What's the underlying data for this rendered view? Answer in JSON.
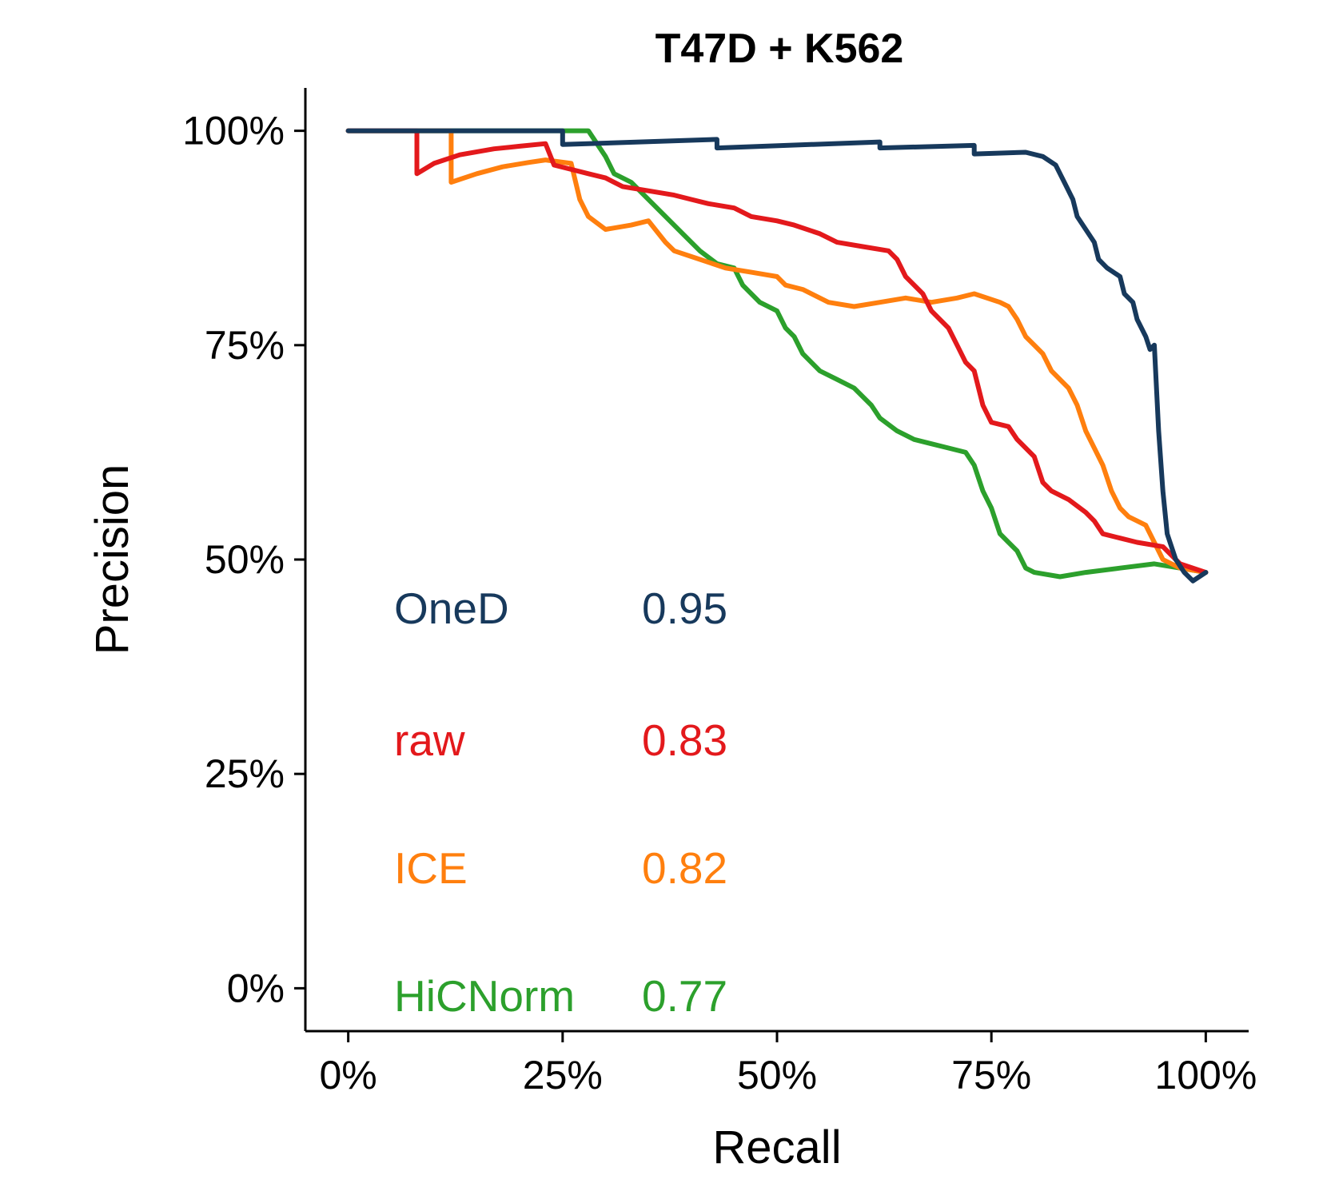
{
  "chart_data": {
    "type": "line",
    "title": "T47D + K562",
    "xlabel": "Recall",
    "ylabel": "Precision",
    "xlim": [
      -0.05,
      1.05
    ],
    "ylim": [
      -0.05,
      1.05
    ],
    "grid": false,
    "x_ticks": [
      0,
      0.25,
      0.5,
      0.75,
      1.0
    ],
    "x_tick_labels": [
      "0%",
      "25%",
      "50%",
      "75%",
      "100%"
    ],
    "y_ticks": [
      0,
      0.25,
      0.5,
      0.75,
      1.0
    ],
    "y_tick_labels": [
      "0%",
      "25%",
      "50%",
      "75%",
      "100%"
    ],
    "draw_order": [
      "HiCNorm",
      "ICE",
      "raw",
      "OneD"
    ],
    "series": [
      {
        "name": "OneD",
        "score": "0.95",
        "color": "#17395c",
        "points": [
          [
            0,
            1.0
          ],
          [
            0.25,
            1.0
          ],
          [
            0.25,
            0.984
          ],
          [
            0.43,
            0.99
          ],
          [
            0.43,
            0.98
          ],
          [
            0.62,
            0.987
          ],
          [
            0.62,
            0.98
          ],
          [
            0.73,
            0.983
          ],
          [
            0.73,
            0.973
          ],
          [
            0.79,
            0.975
          ],
          [
            0.81,
            0.97
          ],
          [
            0.825,
            0.96
          ],
          [
            0.835,
            0.94
          ],
          [
            0.845,
            0.92
          ],
          [
            0.85,
            0.9
          ],
          [
            0.86,
            0.885
          ],
          [
            0.87,
            0.87
          ],
          [
            0.875,
            0.85
          ],
          [
            0.885,
            0.84
          ],
          [
            0.9,
            0.83
          ],
          [
            0.905,
            0.81
          ],
          [
            0.915,
            0.8
          ],
          [
            0.92,
            0.78
          ],
          [
            0.93,
            0.76
          ],
          [
            0.935,
            0.745
          ],
          [
            0.94,
            0.75
          ],
          [
            0.945,
            0.65
          ],
          [
            0.95,
            0.58
          ],
          [
            0.955,
            0.53
          ],
          [
            0.965,
            0.5
          ],
          [
            0.975,
            0.485
          ],
          [
            0.985,
            0.475
          ],
          [
            1.0,
            0.485
          ]
        ]
      },
      {
        "name": "raw",
        "score": "0.83",
        "color": "#e3191c",
        "points": [
          [
            0,
            1.0
          ],
          [
            0.08,
            1.0
          ],
          [
            0.08,
            0.95
          ],
          [
            0.1,
            0.962
          ],
          [
            0.13,
            0.972
          ],
          [
            0.17,
            0.979
          ],
          [
            0.2,
            0.982
          ],
          [
            0.23,
            0.985
          ],
          [
            0.24,
            0.96
          ],
          [
            0.26,
            0.955
          ],
          [
            0.28,
            0.95
          ],
          [
            0.3,
            0.945
          ],
          [
            0.32,
            0.935
          ],
          [
            0.35,
            0.93
          ],
          [
            0.38,
            0.925
          ],
          [
            0.4,
            0.92
          ],
          [
            0.42,
            0.915
          ],
          [
            0.45,
            0.91
          ],
          [
            0.47,
            0.9
          ],
          [
            0.5,
            0.895
          ],
          [
            0.52,
            0.89
          ],
          [
            0.55,
            0.88
          ],
          [
            0.57,
            0.87
          ],
          [
            0.6,
            0.865
          ],
          [
            0.63,
            0.86
          ],
          [
            0.64,
            0.85
          ],
          [
            0.65,
            0.83
          ],
          [
            0.67,
            0.81
          ],
          [
            0.68,
            0.79
          ],
          [
            0.7,
            0.77
          ],
          [
            0.71,
            0.75
          ],
          [
            0.72,
            0.73
          ],
          [
            0.73,
            0.72
          ],
          [
            0.74,
            0.68
          ],
          [
            0.75,
            0.66
          ],
          [
            0.77,
            0.655
          ],
          [
            0.78,
            0.64
          ],
          [
            0.8,
            0.62
          ],
          [
            0.81,
            0.59
          ],
          [
            0.82,
            0.58
          ],
          [
            0.84,
            0.57
          ],
          [
            0.86,
            0.555
          ],
          [
            0.87,
            0.545
          ],
          [
            0.88,
            0.53
          ],
          [
            0.9,
            0.525
          ],
          [
            0.92,
            0.52
          ],
          [
            0.95,
            0.515
          ],
          [
            0.97,
            0.495
          ],
          [
            1.0,
            0.485
          ]
        ]
      },
      {
        "name": "ICE",
        "score": "0.82",
        "color": "#ff7f0e",
        "points": [
          [
            0,
            1.0
          ],
          [
            0.12,
            1.0
          ],
          [
            0.12,
            0.94
          ],
          [
            0.15,
            0.95
          ],
          [
            0.18,
            0.958
          ],
          [
            0.21,
            0.963
          ],
          [
            0.23,
            0.966
          ],
          [
            0.26,
            0.962
          ],
          [
            0.27,
            0.92
          ],
          [
            0.28,
            0.9
          ],
          [
            0.3,
            0.885
          ],
          [
            0.33,
            0.89
          ],
          [
            0.35,
            0.895
          ],
          [
            0.37,
            0.87
          ],
          [
            0.38,
            0.86
          ],
          [
            0.41,
            0.85
          ],
          [
            0.44,
            0.84
          ],
          [
            0.47,
            0.835
          ],
          [
            0.5,
            0.83
          ],
          [
            0.51,
            0.82
          ],
          [
            0.53,
            0.815
          ],
          [
            0.56,
            0.8
          ],
          [
            0.59,
            0.795
          ],
          [
            0.62,
            0.8
          ],
          [
            0.65,
            0.805
          ],
          [
            0.68,
            0.8
          ],
          [
            0.71,
            0.805
          ],
          [
            0.73,
            0.81
          ],
          [
            0.76,
            0.8
          ],
          [
            0.77,
            0.795
          ],
          [
            0.78,
            0.78
          ],
          [
            0.79,
            0.76
          ],
          [
            0.8,
            0.75
          ],
          [
            0.81,
            0.74
          ],
          [
            0.82,
            0.72
          ],
          [
            0.84,
            0.7
          ],
          [
            0.85,
            0.68
          ],
          [
            0.86,
            0.65
          ],
          [
            0.87,
            0.63
          ],
          [
            0.88,
            0.61
          ],
          [
            0.89,
            0.58
          ],
          [
            0.9,
            0.56
          ],
          [
            0.91,
            0.55
          ],
          [
            0.92,
            0.545
          ],
          [
            0.93,
            0.54
          ],
          [
            0.94,
            0.52
          ],
          [
            0.95,
            0.5
          ],
          [
            0.97,
            0.49
          ],
          [
            1.0,
            0.485
          ]
        ]
      },
      {
        "name": "HiCNorm",
        "score": "0.77",
        "color": "#2ca02c",
        "points": [
          [
            0,
            1.0
          ],
          [
            0.28,
            1.0
          ],
          [
            0.3,
            0.97
          ],
          [
            0.31,
            0.95
          ],
          [
            0.33,
            0.94
          ],
          [
            0.35,
            0.92
          ],
          [
            0.37,
            0.9
          ],
          [
            0.39,
            0.88
          ],
          [
            0.41,
            0.86
          ],
          [
            0.43,
            0.845
          ],
          [
            0.45,
            0.84
          ],
          [
            0.46,
            0.82
          ],
          [
            0.48,
            0.8
          ],
          [
            0.5,
            0.79
          ],
          [
            0.51,
            0.77
          ],
          [
            0.52,
            0.76
          ],
          [
            0.53,
            0.74
          ],
          [
            0.55,
            0.72
          ],
          [
            0.57,
            0.71
          ],
          [
            0.59,
            0.7
          ],
          [
            0.6,
            0.69
          ],
          [
            0.61,
            0.68
          ],
          [
            0.62,
            0.665
          ],
          [
            0.64,
            0.65
          ],
          [
            0.66,
            0.64
          ],
          [
            0.68,
            0.635
          ],
          [
            0.7,
            0.63
          ],
          [
            0.72,
            0.625
          ],
          [
            0.73,
            0.61
          ],
          [
            0.74,
            0.58
          ],
          [
            0.75,
            0.56
          ],
          [
            0.76,
            0.53
          ],
          [
            0.77,
            0.52
          ],
          [
            0.78,
            0.51
          ],
          [
            0.79,
            0.49
          ],
          [
            0.8,
            0.485
          ],
          [
            0.83,
            0.48
          ],
          [
            0.86,
            0.485
          ],
          [
            0.9,
            0.49
          ],
          [
            0.94,
            0.495
          ],
          [
            0.97,
            0.49
          ],
          [
            1.0,
            0.485
          ]
        ]
      }
    ]
  }
}
